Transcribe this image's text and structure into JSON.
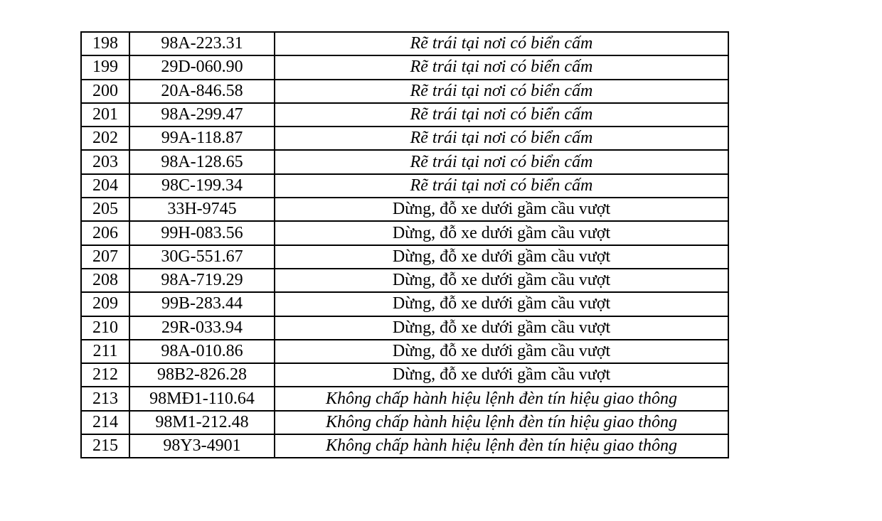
{
  "rows": [
    {
      "no": "198",
      "plate": "98A-223.31",
      "violation": "Rẽ trái tại nơi có biển cấm",
      "italic": true
    },
    {
      "no": "199",
      "plate": "29D-060.90",
      "violation": "Rẽ trái tại nơi có biển cấm",
      "italic": true
    },
    {
      "no": "200",
      "plate": "20A-846.58",
      "violation": "Rẽ trái tại nơi có biển cấm",
      "italic": true
    },
    {
      "no": "201",
      "plate": "98A-299.47",
      "violation": "Rẽ trái tại nơi có biển cấm",
      "italic": true
    },
    {
      "no": "202",
      "plate": "99A-118.87",
      "violation": "Rẽ trái tại nơi có biển cấm",
      "italic": true
    },
    {
      "no": "203",
      "plate": "98A-128.65",
      "violation": "Rẽ trái tại nơi có biển cấm",
      "italic": true
    },
    {
      "no": "204",
      "plate": "98C-199.34",
      "violation": "Rẽ trái tại nơi có biển cấm",
      "italic": true
    },
    {
      "no": "205",
      "plate": "33H-9745",
      "violation": "Dừng, đỗ xe dưới gầm cầu vượt",
      "italic": false
    },
    {
      "no": "206",
      "plate": "99H-083.56",
      "violation": "Dừng, đỗ xe dưới gầm cầu vượt",
      "italic": false
    },
    {
      "no": "207",
      "plate": "30G-551.67",
      "violation": "Dừng, đỗ xe dưới gầm cầu vượt",
      "italic": false
    },
    {
      "no": "208",
      "plate": "98A-719.29",
      "violation": "Dừng, đỗ xe dưới gầm cầu vượt",
      "italic": false
    },
    {
      "no": "209",
      "plate": "99B-283.44",
      "violation": "Dừng, đỗ xe dưới gầm cầu vượt",
      "italic": false
    },
    {
      "no": "210",
      "plate": "29R-033.94",
      "violation": "Dừng, đỗ xe dưới gầm cầu vượt",
      "italic": false
    },
    {
      "no": "211",
      "plate": "98A-010.86",
      "violation": "Dừng, đỗ xe dưới gầm cầu vượt",
      "italic": false
    },
    {
      "no": "212",
      "plate": "98B2-826.28",
      "violation": "Dừng, đỗ xe dưới gầm cầu vượt",
      "italic": false
    },
    {
      "no": "213",
      "plate": "98MĐ1-110.64",
      "violation": "Không chấp hành hiệu lệnh đèn tín hiệu giao thông",
      "italic": true
    },
    {
      "no": "214",
      "plate": "98M1-212.48",
      "violation": "Không chấp hành hiệu lệnh đèn tín hiệu giao thông",
      "italic": true
    },
    {
      "no": "215",
      "plate": "98Y3-4901",
      "violation": "Không chấp hành hiệu lệnh đèn tín hiệu giao thông",
      "italic": true
    }
  ]
}
